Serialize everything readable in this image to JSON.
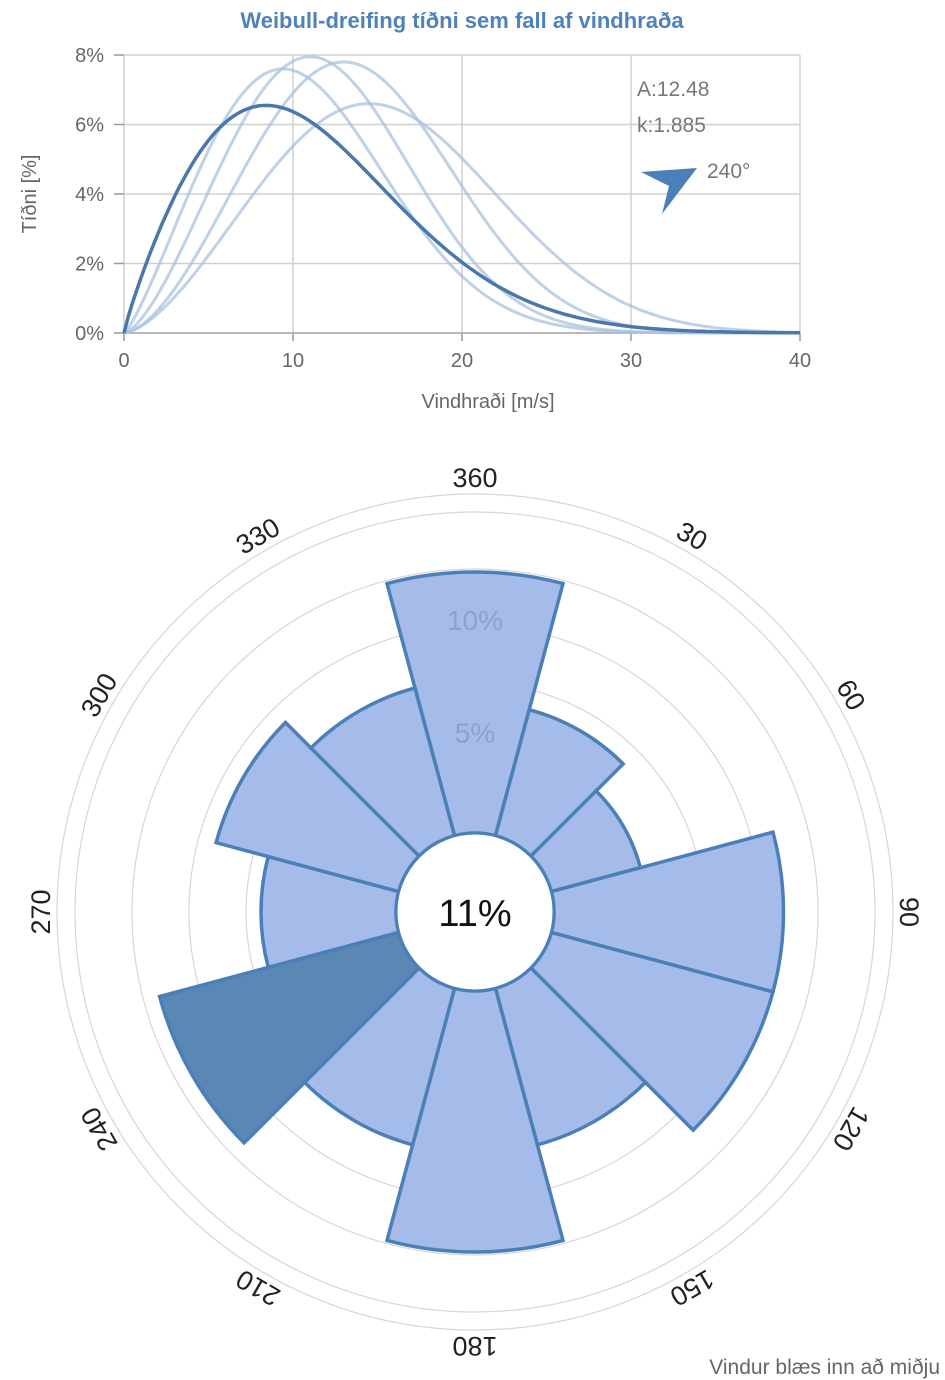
{
  "colors": {
    "line": "#4f81bd",
    "line_dark": "#4a78ad",
    "petal_fill": "#a0b8ea",
    "petal_stroke": "#4a7fb8",
    "petal_selected": "#5b87b5",
    "grid": "#d0d0d0",
    "title": "#4f81bd"
  },
  "chart_data": [
    {
      "type": "line",
      "title": "Weibull-dreifing tíðni sem fall af vindhraða",
      "xlabel": "Vindhraði [m/s]",
      "ylabel": "Tíðni [%]",
      "xlim": [
        0,
        40
      ],
      "ylim": [
        0,
        8
      ],
      "xticks": [
        "0",
        "10",
        "20",
        "30",
        "40"
      ],
      "yticks": [
        "0%",
        "2%",
        "4%",
        "6%",
        "8%"
      ],
      "grid": "vertical and horizontal",
      "series": [
        {
          "A": 12.48,
          "k": 1.885,
          "selected": true,
          "peak_x": 8.4,
          "peak_y": 6.55
        },
        {
          "A": 12.6,
          "k": 2.25,
          "selected": false,
          "peak_x": 9.4,
          "peak_y": 7.6
        },
        {
          "A": 13.7,
          "k": 2.5,
          "selected": false,
          "peak_x": 11.0,
          "peak_y": 7.95
        },
        {
          "A": 15.8,
          "k": 2.65,
          "selected": false,
          "peak_x": 13.0,
          "peak_y": 7.8
        },
        {
          "A": 17.7,
          "k": 2.55,
          "selected": false,
          "peak_x": 14.5,
          "peak_y": 6.6
        }
      ],
      "annotations": {
        "a_text": "A:12.48",
        "k_text": "k:1.885",
        "direction_text": "240°",
        "arrow_direction_deg": 240
      }
    },
    {
      "type": "rose",
      "center_label": "11%",
      "ring_labels": [
        "5%",
        "10%"
      ],
      "ring_values": [
        5,
        10
      ],
      "sector_width_deg": 30,
      "directions": [
        "360",
        "30",
        "60",
        "90",
        "120",
        "150",
        "180",
        "210",
        "240",
        "270",
        "300",
        "330"
      ],
      "values": [
        11.6,
        5.8,
        4.1,
        10.2,
        10.2,
        7.2,
        11.6,
        7.2,
        11.0,
        6.0,
        8.4,
        6.8
      ],
      "selected_direction": "240",
      "footnote": "Vindur blæs inn að miðju"
    }
  ]
}
